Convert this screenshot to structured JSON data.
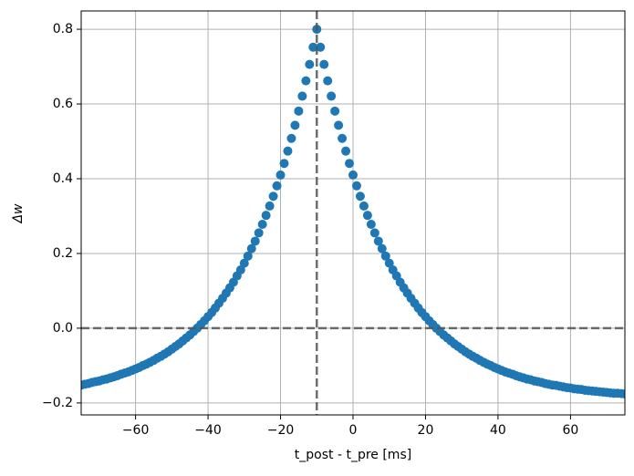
{
  "chart_data": {
    "type": "scatter",
    "xlabel": "t_post - t_pre [ms]",
    "ylabel": "Δw",
    "x": [
      -75,
      -74,
      -73,
      -72,
      -71,
      -70,
      -69,
      -68,
      -67,
      -66,
      -65,
      -64,
      -63,
      -62,
      -61,
      -60,
      -59,
      -58,
      -57,
      -56,
      -55,
      -54,
      -53,
      -52,
      -51,
      -50,
      -49,
      -48,
      -47,
      -46,
      -45,
      -44,
      -43,
      -42,
      -41,
      -40,
      -39,
      -38,
      -37,
      -36,
      -35,
      -34,
      -33,
      -32,
      -31,
      -30,
      -29,
      -28,
      -27,
      -26,
      -25,
      -24,
      -23,
      -22,
      -21,
      -20,
      -19,
      -18,
      -17,
      -16,
      -15,
      -14,
      -13,
      -12,
      -11,
      -10,
      -9,
      -8,
      -7,
      -6,
      -5,
      -4,
      -3,
      -2,
      -1,
      0,
      1,
      2,
      3,
      4,
      5,
      6,
      7,
      8,
      9,
      10,
      11,
      12,
      13,
      14,
      15,
      16,
      17,
      18,
      19,
      20,
      21,
      22,
      23,
      24,
      25,
      26,
      27,
      28,
      29,
      30,
      31,
      32,
      33,
      34,
      35,
      36,
      37,
      38,
      39,
      40,
      41,
      42,
      43,
      44,
      45,
      46,
      47,
      48,
      49,
      50,
      51,
      52,
      53,
      54,
      55,
      56,
      57,
      58,
      59,
      60,
      61,
      62,
      63,
      64,
      65,
      66,
      67,
      68,
      69,
      70,
      71,
      72,
      73,
      74,
      75
    ],
    "values": [
      -0.152,
      -0.15,
      -0.148,
      -0.145,
      -0.143,
      -0.141,
      -0.138,
      -0.136,
      -0.133,
      -0.13,
      -0.127,
      -0.123,
      -0.12,
      -0.117,
      -0.113,
      -0.109,
      -0.105,
      -0.1,
      -0.096,
      -0.091,
      -0.086,
      -0.08,
      -0.075,
      -0.069,
      -0.063,
      -0.056,
      -0.049,
      -0.042,
      -0.034,
      -0.026,
      -0.018,
      -0.009,
      0,
      0.01,
      0.02,
      0.031,
      0.042,
      0.054,
      0.067,
      0.08,
      0.094,
      0.108,
      0.123,
      0.14,
      0.156,
      0.174,
      0.193,
      0.213,
      0.233,
      0.255,
      0.278,
      0.302,
      0.327,
      0.353,
      0.381,
      0.41,
      0.441,
      0.474,
      0.508,
      0.543,
      0.581,
      0.621,
      0.662,
      0.706,
      0.752,
      0.8,
      0.752,
      0.706,
      0.662,
      0.621,
      0.581,
      0.543,
      0.508,
      0.474,
      0.441,
      0.41,
      0.381,
      0.353,
      0.327,
      0.302,
      0.278,
      0.255,
      0.233,
      0.213,
      0.193,
      0.174,
      0.156,
      0.14,
      0.123,
      0.108,
      0.094,
      0.08,
      0.067,
      0.054,
      0.042,
      0.031,
      0.02,
      0.01,
      0,
      -0.009,
      -0.018,
      -0.026,
      -0.034,
      -0.042,
      -0.049,
      -0.056,
      -0.063,
      -0.069,
      -0.075,
      -0.08,
      -0.086,
      -0.091,
      -0.096,
      -0.1,
      -0.105,
      -0.109,
      -0.113,
      -0.117,
      -0.12,
      -0.123,
      -0.127,
      -0.13,
      -0.133,
      -0.136,
      -0.138,
      -0.141,
      -0.143,
      -0.145,
      -0.148,
      -0.15,
      -0.152,
      -0.153,
      -0.155,
      -0.157,
      -0.159,
      -0.16,
      -0.162,
      -0.163,
      -0.164,
      -0.166,
      -0.167,
      -0.168,
      -0.169,
      -0.17,
      -0.171,
      -0.172,
      -0.173,
      -0.174,
      -0.174,
      -0.175,
      -0.176
    ],
    "color": "#1f77b4",
    "reference_lines": {
      "x": -10,
      "y": 0
    },
    "xlim": [
      -75,
      75
    ],
    "xticks": [
      {
        "value": -60,
        "label": "−60"
      },
      {
        "value": -40,
        "label": "−40"
      },
      {
        "value": -20,
        "label": "−20"
      },
      0,
      20,
      40,
      60
    ],
    "ylim": [
      -0.232,
      0.849
    ],
    "yticks": [
      {
        "value": -0.2,
        "label": "−0.2"
      },
      {
        "value": 0,
        "label": "0.0"
      },
      0.2,
      0.4,
      0.6,
      0.8
    ],
    "grid": true
  }
}
